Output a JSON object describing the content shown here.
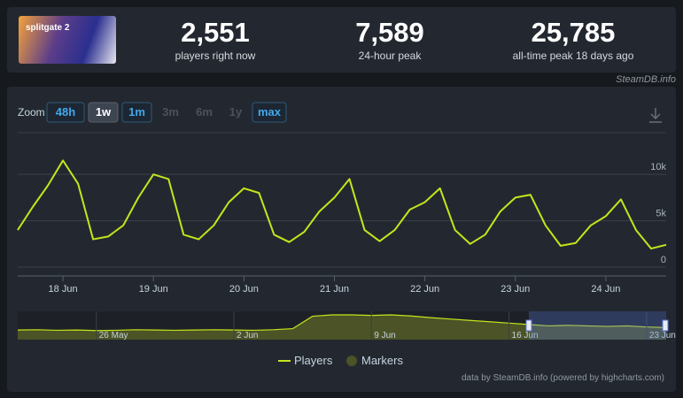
{
  "header": {
    "game_logo": "splitgate 2",
    "stats": [
      {
        "value": "2,551",
        "label": "players right now"
      },
      {
        "value": "7,589",
        "label": "24-hour peak"
      },
      {
        "value": "25,785",
        "label": "all-time peak 18 days ago"
      }
    ],
    "source": "SteamDB.info"
  },
  "zoom": {
    "label": "Zoom",
    "buttons": [
      {
        "label": "48h",
        "state": "enabled"
      },
      {
        "label": "1w",
        "state": "selected"
      },
      {
        "label": "1m",
        "state": "enabled"
      },
      {
        "label": "3m",
        "state": "disabled"
      },
      {
        "label": "6m",
        "state": "disabled"
      },
      {
        "label": "1y",
        "state": "disabled"
      },
      {
        "label": "max",
        "state": "enabled"
      }
    ]
  },
  "chart_data": [
    {
      "type": "line",
      "categories": [
        null,
        null,
        null,
        "18 Jun",
        null,
        null,
        null,
        null,
        null,
        "19 Jun",
        null,
        null,
        null,
        null,
        null,
        "20 Jun",
        null,
        null,
        null,
        null,
        null,
        "21 Jun",
        null,
        null,
        null,
        null,
        null,
        "22 Jun",
        null,
        null,
        null,
        null,
        null,
        "23 Jun",
        null,
        null,
        null,
        null,
        null,
        "24 Jun",
        null,
        null,
        null,
        null
      ],
      "series": [
        {
          "name": "Players",
          "color": "#c5e51b",
          "values": [
            4.0,
            6.5,
            8.8,
            11.5,
            9.0,
            3.0,
            3.3,
            4.5,
            7.5,
            10.0,
            9.5,
            3.5,
            3.0,
            4.5,
            7.0,
            8.5,
            8.0,
            3.5,
            2.7,
            3.8,
            6.0,
            7.5,
            9.5,
            4.0,
            2.8,
            4.0,
            6.2,
            7.0,
            8.5,
            4.0,
            2.5,
            3.5,
            6.0,
            7.5,
            7.8,
            4.5,
            2.3,
            2.6,
            4.5,
            5.5,
            7.3,
            4.0,
            2.0,
            2.4
          ]
        }
      ],
      "ylim": [
        0,
        14.5
      ],
      "yticks": [
        {
          "value": 0,
          "label": "0"
        },
        {
          "value": 5,
          "label": "5k"
        },
        {
          "value": 10,
          "label": "10k"
        }
      ],
      "grid": true
    },
    {
      "type": "area",
      "categories": [
        null,
        null,
        null,
        null,
        "26 May",
        null,
        null,
        null,
        null,
        null,
        null,
        "2 Jun",
        null,
        null,
        null,
        null,
        null,
        null,
        "9 Jun",
        null,
        null,
        null,
        null,
        null,
        null,
        "16 Jun",
        null,
        null,
        null,
        null,
        null,
        null,
        "23 Jun",
        null
      ],
      "series": [
        {
          "name": "Markers",
          "color": "#4b5327",
          "values": [
            3.5,
            3.6,
            3.4,
            3.5,
            3.3,
            3.4,
            3.6,
            3.5,
            3.4,
            3.5,
            3.6,
            3.5,
            3.4,
            3.6,
            4.0,
            8.5,
            9.0,
            9.0,
            8.8,
            9.0,
            8.6,
            8.0,
            7.5,
            7.0,
            6.5,
            6.0,
            5.5,
            5.0,
            5.2,
            5.0,
            4.8,
            5.0,
            4.6,
            4.4
          ]
        }
      ]
    }
  ],
  "legend": [
    "Players",
    "Markers"
  ],
  "credits": "data by SteamDB.info (powered by highcharts.com)"
}
